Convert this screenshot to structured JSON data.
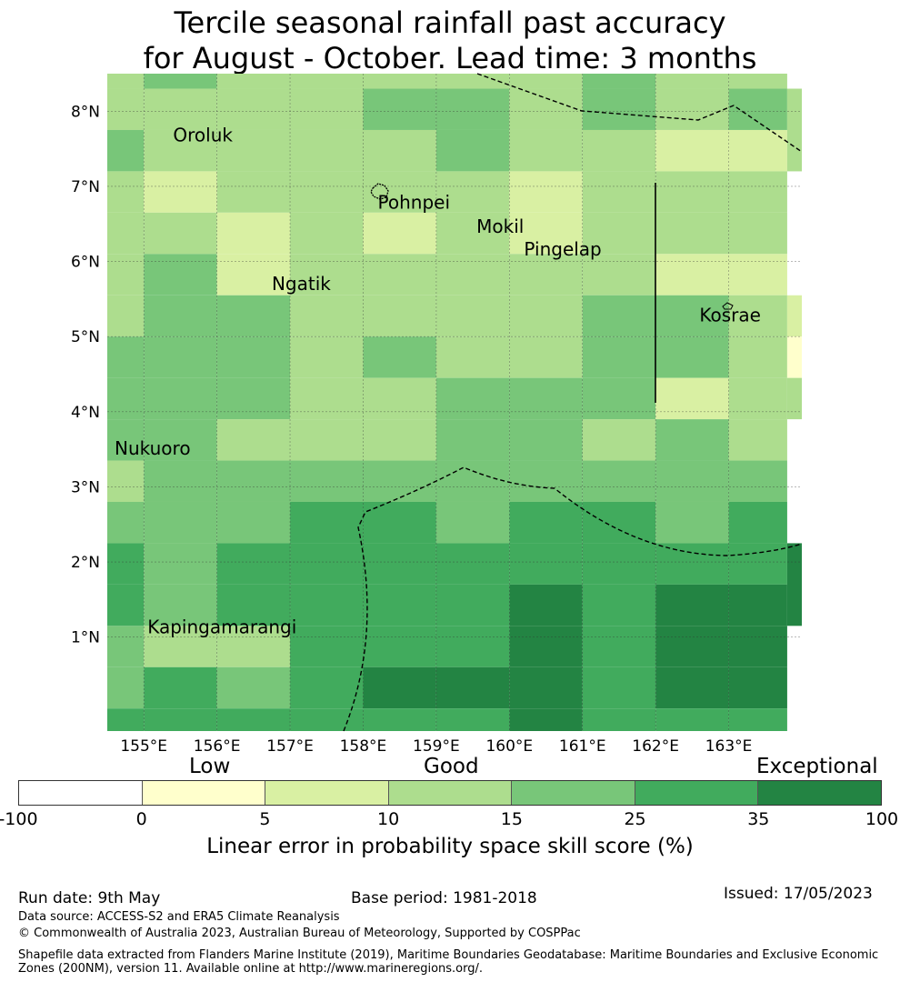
{
  "title": {
    "line1": "Tercile seasonal rainfall past accuracy",
    "line2": "for August - October. Lead time: 3 months"
  },
  "map": {
    "lon_range": [
      154.5,
      164.0
    ],
    "lat_range": [
      -0.25,
      8.5
    ],
    "lon_ticks": [
      {
        "value": 155,
        "label": "155°E"
      },
      {
        "value": 156,
        "label": "156°E"
      },
      {
        "value": 157,
        "label": "157°E"
      },
      {
        "value": 158,
        "label": "158°E"
      },
      {
        "value": 159,
        "label": "159°E"
      },
      {
        "value": 160,
        "label": "160°E"
      },
      {
        "value": 161,
        "label": "161°E"
      },
      {
        "value": 162,
        "label": "162°E"
      },
      {
        "value": 163,
        "label": "163°E"
      }
    ],
    "lat_ticks": [
      {
        "value": 1,
        "label": "1°N"
      },
      {
        "value": 2,
        "label": "2°N"
      },
      {
        "value": 3,
        "label": "3°N"
      },
      {
        "value": 4,
        "label": "4°N"
      },
      {
        "value": 5,
        "label": "5°N"
      },
      {
        "value": 6,
        "label": "6°N"
      },
      {
        "value": 7,
        "label": "7°N"
      },
      {
        "value": 8,
        "label": "8°N"
      }
    ],
    "grid": {
      "lon_edges": [
        154.5,
        155.0,
        156.0,
        157.0,
        158.0,
        159.0,
        160.0,
        161.0,
        162.0,
        163.0,
        163.8
      ],
      "lat_edges": [
        8.5,
        8.3,
        7.75,
        7.2,
        6.65,
        6.1,
        5.55,
        5.0,
        4.45,
        3.9,
        3.35,
        2.8,
        2.25,
        1.7,
        1.15,
        0.6,
        0.05,
        -0.25
      ],
      "cell_category_rows": [
        [
          3,
          4,
          3,
          3,
          3,
          3,
          3,
          4,
          3,
          3
        ],
        [
          3,
          3,
          3,
          3,
          4,
          4,
          3,
          4,
          3,
          4
        ],
        [
          4,
          3,
          3,
          3,
          3,
          4,
          3,
          3,
          2,
          2
        ],
        [
          3,
          2,
          3,
          3,
          3,
          3,
          2,
          3,
          3,
          3
        ],
        [
          3,
          3,
          2,
          3,
          2,
          3,
          2,
          3,
          3,
          3
        ],
        [
          3,
          4,
          2,
          3,
          3,
          3,
          3,
          3,
          2,
          2
        ],
        [
          3,
          4,
          4,
          3,
          3,
          3,
          3,
          4,
          4,
          3
        ],
        [
          4,
          4,
          4,
          3,
          4,
          3,
          3,
          4,
          4,
          3
        ],
        [
          4,
          4,
          4,
          3,
          3,
          4,
          4,
          4,
          2,
          3
        ],
        [
          4,
          4,
          3,
          3,
          3,
          4,
          4,
          3,
          4,
          3
        ],
        [
          3,
          4,
          4,
          4,
          4,
          4,
          4,
          4,
          4,
          4
        ],
        [
          4,
          4,
          4,
          5,
          5,
          4,
          5,
          5,
          4,
          5
        ],
        [
          5,
          4,
          5,
          5,
          5,
          5,
          5,
          5,
          5,
          5
        ],
        [
          5,
          4,
          5,
          5,
          5,
          5,
          6,
          5,
          6,
          6
        ],
        [
          4,
          3,
          3,
          5,
          5,
          5,
          6,
          5,
          6,
          6
        ],
        [
          4,
          5,
          4,
          5,
          6,
          6,
          6,
          5,
          6,
          6
        ],
        [
          5,
          5,
          5,
          5,
          5,
          5,
          6,
          5,
          5,
          5
        ]
      ],
      "right_edge_cells": [
        {
          "lat_top": 8.3,
          "lat_bottom": 7.2,
          "category": 3
        },
        {
          "lat_top": 5.55,
          "lat_bottom": 5.0,
          "category": 2
        },
        {
          "lat_top": 5.0,
          "lat_bottom": 4.45,
          "category": 1
        },
        {
          "lat_top": 4.45,
          "lat_bottom": 3.9,
          "category": 3
        },
        {
          "lat_top": 2.25,
          "lat_bottom": 1.15,
          "category": 6
        }
      ]
    },
    "places": [
      {
        "name": "Oroluk",
        "lon": 155.4,
        "lat": 7.6
      },
      {
        "name": "Pohnpei",
        "lon": 158.2,
        "lat": 6.7
      },
      {
        "name": "Mokil",
        "lon": 159.55,
        "lat": 6.38
      },
      {
        "name": "Pingelap",
        "lon": 160.2,
        "lat": 6.08
      },
      {
        "name": "Ngatik",
        "lon": 156.75,
        "lat": 5.62
      },
      {
        "name": "Kosrae",
        "lon": 162.6,
        "lat": 5.2
      },
      {
        "name": "Nukuoro",
        "lon": 154.6,
        "lat": 3.43
      },
      {
        "name": "Kapingamarangi",
        "lon": 155.05,
        "lat": 1.05
      }
    ]
  },
  "legend": {
    "categories": [
      {
        "label": "Low",
        "position": "left"
      },
      {
        "label": "Good",
        "position": "center"
      },
      {
        "label": "Exceptional",
        "position": "right"
      }
    ],
    "bins": [
      {
        "from": -100,
        "to": 0,
        "color": "#ffffff"
      },
      {
        "from": 0,
        "to": 5,
        "color": "#ffffcc"
      },
      {
        "from": 5,
        "to": 10,
        "color": "#d9f0a3"
      },
      {
        "from": 10,
        "to": 15,
        "color": "#addd8e"
      },
      {
        "from": 15,
        "to": 25,
        "color": "#78c679"
      },
      {
        "from": 25,
        "to": 35,
        "color": "#41ab5d"
      },
      {
        "from": 35,
        "to": 100,
        "color": "#238443"
      }
    ],
    "tick_labels": [
      "-100",
      "0",
      "5",
      "10",
      "15",
      "25",
      "35",
      "100"
    ],
    "label": "Linear error in probability space skill score (%)"
  },
  "footer": {
    "run_date": "Run date: 9th May",
    "base_period": "Base period: 1981-2018",
    "issued": "Issued: 17/05/2023",
    "data_source": "Data source: ACCESS-S2 and ERA5 Climate Reanalysis",
    "copyright": "© Commonwealth of Australia 2023, Australian Bureau of Meteorology, Supported by COSPPac",
    "shapefile": "Shapefile data extracted from Flanders Marine Institute (2019), Maritime Boundaries Geodatabase: Maritime Boundaries and Exclusive Economic Zones (200NM), version 11. Available online at http://www.marineregions.org/."
  }
}
